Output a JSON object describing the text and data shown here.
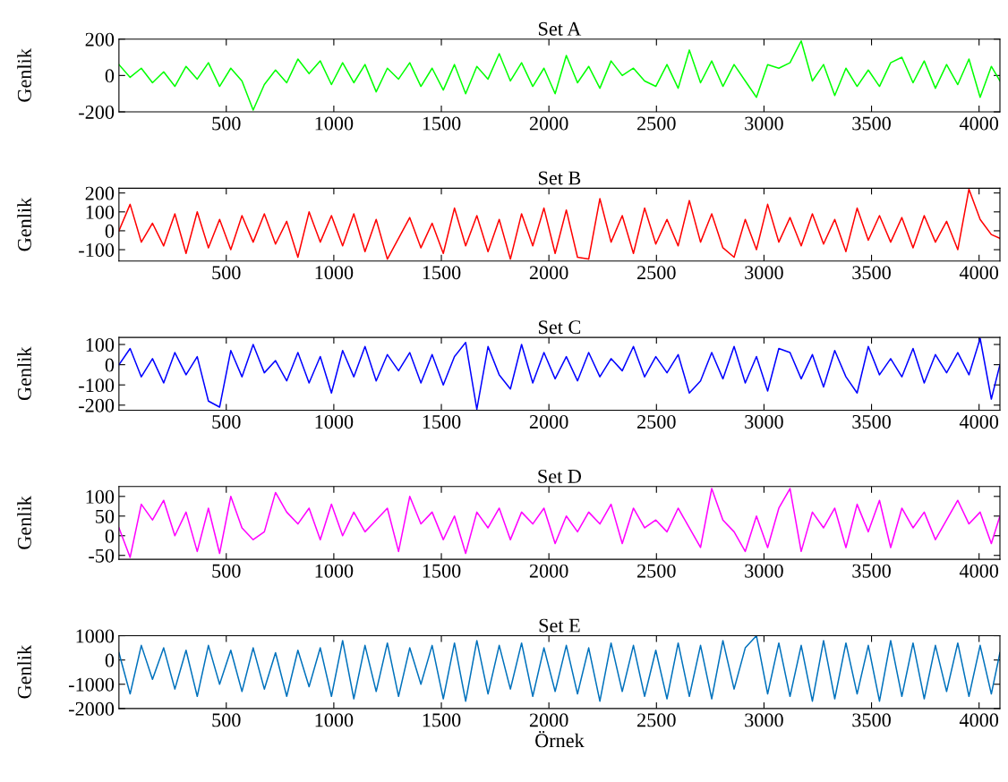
{
  "chart_data": [
    {
      "type": "line",
      "title": "Set A",
      "ylabel": "Genlik",
      "xlim": [
        1,
        4097
      ],
      "xticks": [
        500,
        1000,
        1500,
        2000,
        2500,
        3000,
        3500,
        4000
      ],
      "ylim": [
        -200,
        200
      ],
      "yticks": [
        -200,
        0,
        200
      ],
      "grid": false,
      "x": [
        1,
        53,
        105,
        157,
        209,
        261,
        313,
        365,
        417,
        469,
        521,
        573,
        625,
        677,
        729,
        781,
        833,
        885,
        937,
        989,
        1041,
        1093,
        1145,
        1197,
        1249,
        1301,
        1353,
        1405,
        1457,
        1509,
        1561,
        1613,
        1665,
        1717,
        1769,
        1821,
        1873,
        1925,
        1977,
        2029,
        2081,
        2133,
        2185,
        2237,
        2289,
        2341,
        2393,
        2445,
        2497,
        2549,
        2601,
        2653,
        2705,
        2757,
        2809,
        2861,
        2913,
        2965,
        3017,
        3069,
        3121,
        3173,
        3225,
        3277,
        3329,
        3381,
        3433,
        3485,
        3537,
        3589,
        3641,
        3693,
        3745,
        3797,
        3849,
        3901,
        3953,
        4005,
        4057,
        4097
      ],
      "series": [
        {
          "color": "#00ff00",
          "values": [
            60,
            -10,
            40,
            -40,
            20,
            -60,
            50,
            -20,
            70,
            -60,
            40,
            -30,
            -190,
            -50,
            30,
            -40,
            90,
            10,
            80,
            -50,
            70,
            -40,
            60,
            -90,
            40,
            -20,
            70,
            -60,
            40,
            -80,
            60,
            -100,
            50,
            -20,
            120,
            -30,
            70,
            -60,
            40,
            -100,
            110,
            -40,
            50,
            -70,
            80,
            0,
            40,
            -30,
            -60,
            60,
            -70,
            140,
            -40,
            80,
            -60,
            60,
            -30,
            -120,
            60,
            40,
            70,
            190,
            -30,
            60,
            -110,
            40,
            -60,
            30,
            -60,
            70,
            100,
            -40,
            80,
            -70,
            60,
            -50,
            90,
            -120,
            50,
            -30
          ]
        }
      ]
    },
    {
      "type": "line",
      "title": "Set B",
      "ylabel": "Genlik",
      "xlim": [
        1,
        4097
      ],
      "xticks": [
        500,
        1000,
        1500,
        2000,
        2500,
        3000,
        3500,
        4000
      ],
      "ylim": [
        -160,
        225
      ],
      "yticks": [
        -100,
        0,
        100,
        200
      ],
      "grid": false,
      "x": [
        1,
        53,
        105,
        157,
        209,
        261,
        313,
        365,
        417,
        469,
        521,
        573,
        625,
        677,
        729,
        781,
        833,
        885,
        937,
        989,
        1041,
        1093,
        1145,
        1197,
        1249,
        1301,
        1353,
        1405,
        1457,
        1509,
        1561,
        1613,
        1665,
        1717,
        1769,
        1821,
        1873,
        1925,
        1977,
        2029,
        2081,
        2133,
        2185,
        2237,
        2289,
        2341,
        2393,
        2445,
        2497,
        2549,
        2601,
        2653,
        2705,
        2757,
        2809,
        2861,
        2913,
        2965,
        3017,
        3069,
        3121,
        3173,
        3225,
        3277,
        3329,
        3381,
        3433,
        3485,
        3537,
        3589,
        3641,
        3693,
        3745,
        3797,
        3849,
        3901,
        3953,
        4005,
        4057,
        4097
      ],
      "series": [
        {
          "color": "#ff0000",
          "values": [
            0,
            140,
            -60,
            40,
            -80,
            90,
            -120,
            100,
            -90,
            60,
            -100,
            80,
            -60,
            90,
            -70,
            50,
            -140,
            100,
            -60,
            80,
            -80,
            90,
            -110,
            60,
            -150,
            -40,
            70,
            -90,
            40,
            -120,
            120,
            -80,
            80,
            -110,
            60,
            -150,
            90,
            -80,
            120,
            -120,
            110,
            -140,
            -150,
            170,
            -60,
            80,
            -120,
            120,
            -70,
            60,
            -80,
            160,
            -60,
            90,
            -90,
            -140,
            60,
            -100,
            140,
            -60,
            70,
            -80,
            90,
            -70,
            60,
            -110,
            120,
            -50,
            80,
            -60,
            70,
            -90,
            80,
            -60,
            50,
            -100,
            220,
            60,
            -20,
            -40
          ]
        }
      ]
    },
    {
      "type": "line",
      "title": "Set C",
      "ylabel": "Genlik",
      "xlim": [
        1,
        4097
      ],
      "xticks": [
        500,
        1000,
        1500,
        2000,
        2500,
        3000,
        3500,
        4000
      ],
      "ylim": [
        -225,
        135
      ],
      "yticks": [
        -200,
        -100,
        0,
        100
      ],
      "grid": false,
      "x": [
        1,
        53,
        105,
        157,
        209,
        261,
        313,
        365,
        417,
        469,
        521,
        573,
        625,
        677,
        729,
        781,
        833,
        885,
        937,
        989,
        1041,
        1093,
        1145,
        1197,
        1249,
        1301,
        1353,
        1405,
        1457,
        1509,
        1561,
        1613,
        1665,
        1717,
        1769,
        1821,
        1873,
        1925,
        1977,
        2029,
        2081,
        2133,
        2185,
        2237,
        2289,
        2341,
        2393,
        2445,
        2497,
        2549,
        2601,
        2653,
        2705,
        2757,
        2809,
        2861,
        2913,
        2965,
        3017,
        3069,
        3121,
        3173,
        3225,
        3277,
        3329,
        3381,
        3433,
        3485,
        3537,
        3589,
        3641,
        3693,
        3745,
        3797,
        3849,
        3901,
        3953,
        4005,
        4057,
        4097
      ],
      "series": [
        {
          "color": "#0000ff",
          "values": [
            0,
            80,
            -60,
            30,
            -90,
            60,
            -50,
            40,
            -180,
            -210,
            70,
            -60,
            100,
            -40,
            20,
            -80,
            60,
            -90,
            40,
            -140,
            70,
            -60,
            90,
            -80,
            50,
            -30,
            60,
            -90,
            50,
            -100,
            40,
            110,
            -220,
            90,
            -50,
            -120,
            100,
            -90,
            60,
            -70,
            40,
            -80,
            60,
            -60,
            30,
            -30,
            90,
            -60,
            40,
            -40,
            50,
            -140,
            -80,
            60,
            -70,
            90,
            -90,
            40,
            -130,
            80,
            60,
            -70,
            50,
            -110,
            70,
            -60,
            -140,
            90,
            -50,
            30,
            -60,
            80,
            -90,
            50,
            -40,
            60,
            -50,
            130,
            -170,
            0
          ]
        }
      ]
    },
    {
      "type": "line",
      "title": "Set D",
      "ylabel": "Genlik",
      "xlim": [
        1,
        4097
      ],
      "xticks": [
        500,
        1000,
        1500,
        2000,
        2500,
        3000,
        3500,
        4000
      ],
      "ylim": [
        -60,
        125
      ],
      "yticks": [
        -50,
        0,
        50,
        100
      ],
      "grid": false,
      "x": [
        1,
        53,
        105,
        157,
        209,
        261,
        313,
        365,
        417,
        469,
        521,
        573,
        625,
        677,
        729,
        781,
        833,
        885,
        937,
        989,
        1041,
        1093,
        1145,
        1197,
        1249,
        1301,
        1353,
        1405,
        1457,
        1509,
        1561,
        1613,
        1665,
        1717,
        1769,
        1821,
        1873,
        1925,
        1977,
        2029,
        2081,
        2133,
        2185,
        2237,
        2289,
        2341,
        2393,
        2445,
        2497,
        2549,
        2601,
        2653,
        2705,
        2757,
        2809,
        2861,
        2913,
        2965,
        3017,
        3069,
        3121,
        3173,
        3225,
        3277,
        3329,
        3381,
        3433,
        3485,
        3537,
        3589,
        3641,
        3693,
        3745,
        3797,
        3849,
        3901,
        3953,
        4005,
        4057,
        4097
      ],
      "series": [
        {
          "color": "#ff00ff",
          "values": [
            20,
            -55,
            80,
            40,
            90,
            0,
            60,
            -40,
            70,
            -45,
            100,
            20,
            -10,
            10,
            110,
            60,
            30,
            70,
            -10,
            80,
            0,
            60,
            10,
            40,
            70,
            -40,
            100,
            30,
            60,
            -10,
            50,
            -45,
            60,
            20,
            70,
            -10,
            60,
            30,
            70,
            -20,
            50,
            10,
            60,
            30,
            80,
            -20,
            70,
            20,
            40,
            10,
            70,
            20,
            -30,
            120,
            40,
            10,
            -40,
            50,
            -30,
            70,
            120,
            -40,
            60,
            20,
            70,
            -30,
            80,
            10,
            90,
            -30,
            70,
            20,
            60,
            -10,
            40,
            90,
            30,
            60,
            -20,
            50
          ]
        }
      ]
    },
    {
      "type": "line",
      "title": "Set E",
      "ylabel": "Genlik",
      "xlabel": "Örnek",
      "xlim": [
        1,
        4097
      ],
      "xticks": [
        500,
        1000,
        1500,
        2000,
        2500,
        3000,
        3500,
        4000
      ],
      "ylim": [
        -2000,
        1000
      ],
      "yticks": [
        -2000,
        -1000,
        0,
        1000
      ],
      "grid": false,
      "x": [
        1,
        53,
        105,
        157,
        209,
        261,
        313,
        365,
        417,
        469,
        521,
        573,
        625,
        677,
        729,
        781,
        833,
        885,
        937,
        989,
        1041,
        1093,
        1145,
        1197,
        1249,
        1301,
        1353,
        1405,
        1457,
        1509,
        1561,
        1613,
        1665,
        1717,
        1769,
        1821,
        1873,
        1925,
        1977,
        2029,
        2081,
        2133,
        2185,
        2237,
        2289,
        2341,
        2393,
        2445,
        2497,
        2549,
        2601,
        2653,
        2705,
        2757,
        2809,
        2861,
        2913,
        2965,
        3017,
        3069,
        3121,
        3173,
        3225,
        3277,
        3329,
        3381,
        3433,
        3485,
        3537,
        3589,
        3641,
        3693,
        3745,
        3797,
        3849,
        3901,
        3953,
        4005,
        4057,
        4097
      ],
      "series": [
        {
          "color": "#0072bd",
          "values": [
            300,
            -1400,
            600,
            -800,
            500,
            -1200,
            400,
            -1500,
            600,
            -1000,
            400,
            -1300,
            500,
            -1200,
            300,
            -1500,
            400,
            -1100,
            500,
            -1500,
            800,
            -1600,
            600,
            -1300,
            700,
            -1500,
            500,
            -1000,
            600,
            -1600,
            700,
            -1700,
            800,
            -1400,
            600,
            -1200,
            700,
            -1500,
            500,
            -1300,
            600,
            -1400,
            500,
            -1700,
            700,
            -1300,
            600,
            -1500,
            400,
            -1600,
            700,
            -1500,
            600,
            -1600,
            800,
            -1200,
            500,
            1000,
            -1400,
            700,
            -1500,
            600,
            -1700,
            800,
            -1600,
            700,
            -1400,
            600,
            -1700,
            800,
            -1500,
            700,
            -1600,
            600,
            -1300,
            700,
            -1500,
            600,
            -1400,
            300
          ]
        }
      ]
    }
  ]
}
